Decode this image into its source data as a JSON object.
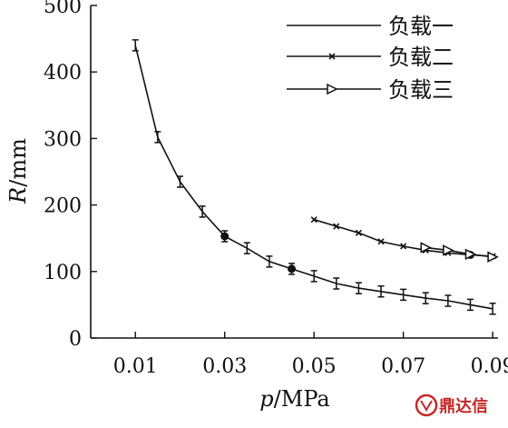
{
  "chart_data": {
    "type": "line",
    "title": "",
    "xlabel": "p/MPa",
    "xlabel_italic": "p",
    "xlabel_rest": "/MPa",
    "ylabel": "R/mm",
    "ylabel_italic": "R",
    "ylabel_rest": "/mm",
    "xlim": [
      0.0,
      0.09
    ],
    "ylim": [
      0,
      500
    ],
    "x_ticks": [
      {
        "value": 0.01,
        "label": "0.01"
      },
      {
        "value": 0.03,
        "label": "0.03"
      },
      {
        "value": 0.05,
        "label": "0.05"
      },
      {
        "value": 0.07,
        "label": "0.07"
      },
      {
        "value": 0.09,
        "label": "0.09"
      }
    ],
    "y_ticks": [
      {
        "value": 0,
        "label": "0"
      },
      {
        "value": 100,
        "label": "100"
      },
      {
        "value": 200,
        "label": "200"
      },
      {
        "value": 300,
        "label": "300"
      },
      {
        "value": 400,
        "label": "400"
      },
      {
        "value": 500,
        "label": "500"
      }
    ],
    "grid": false,
    "legend_position": "top-right",
    "series": [
      {
        "name": "负载一",
        "marker": "errorbar",
        "x": [
          0.01,
          0.015,
          0.02,
          0.025,
          0.03,
          0.035,
          0.04,
          0.045,
          0.05,
          0.055,
          0.06,
          0.065,
          0.07,
          0.075,
          0.08,
          0.085,
          0.09
        ],
        "y": [
          440,
          302,
          235,
          190,
          153,
          135,
          115,
          104,
          93,
          82,
          75,
          70,
          65,
          60,
          56,
          50,
          44
        ],
        "highlight_x": [
          0.03,
          0.045
        ]
      },
      {
        "name": "负载二",
        "marker": "cross",
        "x": [
          0.05,
          0.055,
          0.06,
          0.065,
          0.07,
          0.075,
          0.08,
          0.085,
          0.09
        ],
        "y": [
          178,
          168,
          158,
          145,
          138,
          132,
          128,
          125,
          123
        ],
        "highlight_x": [
          0.085
        ]
      },
      {
        "name": "负载三",
        "marker": "triangle-right",
        "x": [
          0.075,
          0.08,
          0.085,
          0.09
        ],
        "y": [
          136,
          132,
          126,
          122
        ]
      }
    ]
  },
  "watermark": {
    "text": "鼎达信"
  }
}
